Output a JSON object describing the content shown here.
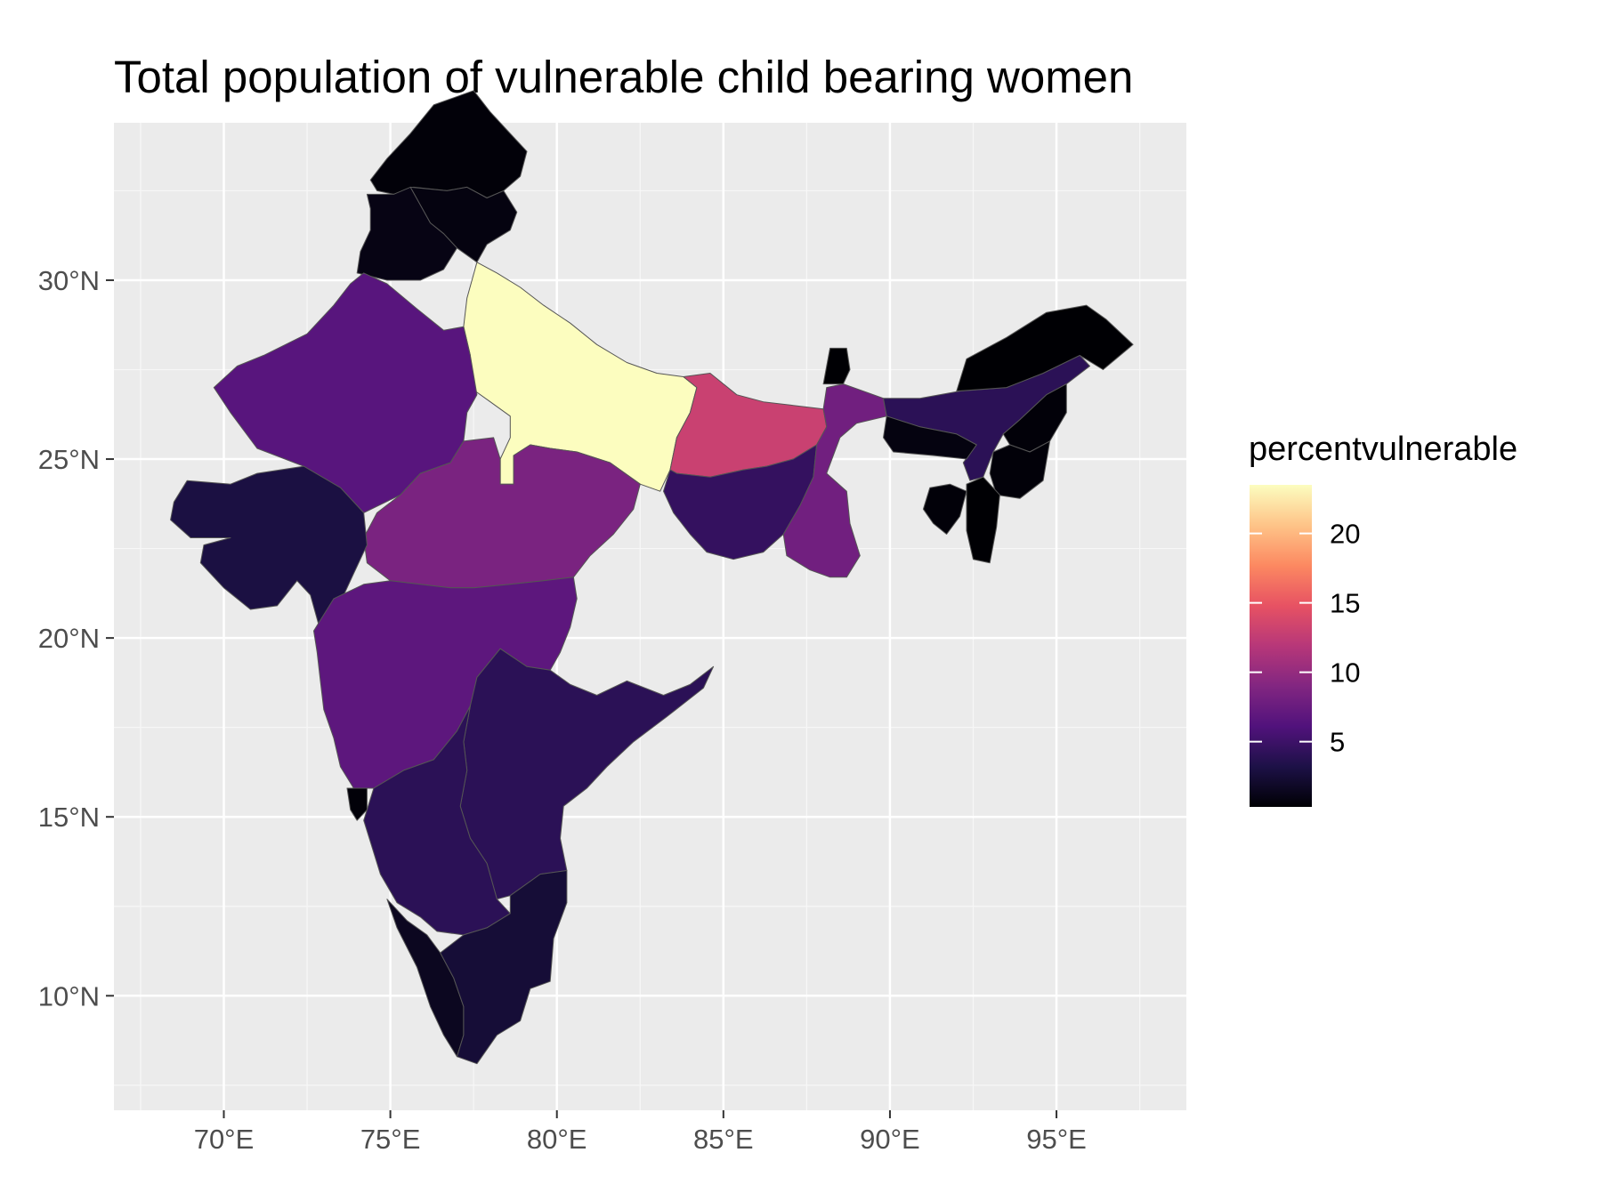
{
  "title": "Total population of vulnerable child bearing women",
  "chart_data": {
    "type": "map",
    "title": "Total population of vulnerable child bearing women",
    "fill_variable": "percentvulnerable",
    "x_axis": {
      "ticks": [
        70,
        75,
        80,
        85,
        90,
        95
      ],
      "tick_labels": [
        "70°E",
        "75°E",
        "80°E",
        "85°E",
        "90°E",
        "95°E"
      ],
      "lim": [
        66.7,
        98.9
      ]
    },
    "y_axis": {
      "ticks": [
        10,
        15,
        20,
        25,
        30
      ],
      "tick_labels": [
        "10°N",
        "15°N",
        "20°N",
        "25°N",
        "30°N"
      ],
      "lim": [
        6.8,
        34.4
      ]
    },
    "grid": true,
    "colorscale": {
      "name": "magma",
      "min": 0.3,
      "max": 23.5,
      "ticks": [
        5,
        10,
        15,
        20
      ],
      "tick_labels": [
        "5",
        "10",
        "15",
        "20"
      ],
      "colors": [
        "#000004",
        "#1d1147",
        "#51127c",
        "#822681",
        "#b73779",
        "#e75263",
        "#fc8961",
        "#fec488",
        "#fcfdbf"
      ]
    },
    "regions": [
      {
        "id": "jammu-kashmir",
        "value": 0.5
      },
      {
        "id": "himachal-pradesh",
        "value": 0.8
      },
      {
        "id": "punjab",
        "value": 1.0
      },
      {
        "id": "uttar-pradesh",
        "value": 23.5
      },
      {
        "id": "rajasthan",
        "value": 6.5
      },
      {
        "id": "madhya-pradesh",
        "value": 8.5
      },
      {
        "id": "gujarat",
        "value": 3.0
      },
      {
        "id": "maharashtra",
        "value": 6.8
      },
      {
        "id": "bihar",
        "value": 13.0
      },
      {
        "id": "jharkhand",
        "value": 4.5
      },
      {
        "id": "west-bengal",
        "value": 8.0
      },
      {
        "id": "sikkim",
        "value": 0.3
      },
      {
        "id": "andhra-pradesh",
        "value": 4.0
      },
      {
        "id": "karnataka",
        "value": 4.0
      },
      {
        "id": "goa",
        "value": 0.5
      },
      {
        "id": "kerala",
        "value": 1.5
      },
      {
        "id": "tamil-nadu",
        "value": 2.5
      },
      {
        "id": "assam",
        "value": 4.0
      },
      {
        "id": "arunachal-pradesh",
        "value": 0.3
      },
      {
        "id": "meghalaya",
        "value": 0.8
      },
      {
        "id": "nagaland",
        "value": 0.5
      },
      {
        "id": "manipur",
        "value": 0.5
      },
      {
        "id": "mizoram",
        "value": 0.3
      },
      {
        "id": "tripura",
        "value": 0.5
      }
    ]
  }
}
